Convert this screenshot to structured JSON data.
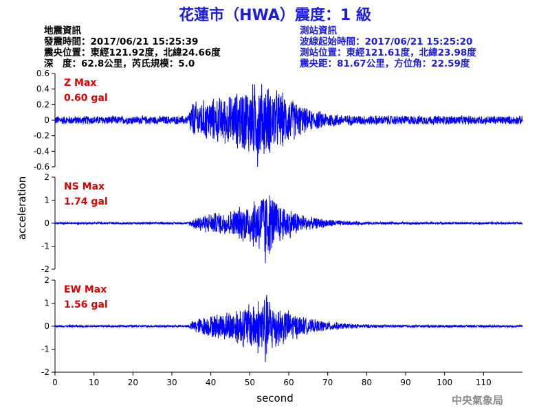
{
  "header": {
    "title": "花蓮市（HWA）震度：1 級"
  },
  "quake_info": {
    "heading": "地震資訊",
    "origin_time": "發震時間：2017/06/21 15:25:39",
    "epicenter": "震央位置：東經121.92度，北緯24.66度",
    "depth_magnitude": "深　度：62.8公里，芮氏規模：5.0"
  },
  "station_info": {
    "heading": "測站資訊",
    "wave_start": "波線起始時間：2017/06/21 15:25:20",
    "station_location": "測站位置：東經121.61度，北緯23.98度",
    "distance_azimuth": "震央距：81.67公里，方位角：22.59度"
  },
  "footer": {
    "credit": "中央氣象局"
  },
  "colors": {
    "trace": "#0000ff",
    "max_label": "#e00000",
    "title": "#1c1ce0",
    "axis": "#000000"
  },
  "chart_data": {
    "type": "line",
    "xlabel": "second",
    "ylabel": "acceleration",
    "xlim": [
      0,
      120
    ],
    "x_ticks": [
      0,
      10,
      20,
      30,
      40,
      50,
      60,
      70,
      80,
      90,
      100,
      110
    ],
    "grid": false,
    "panels": [
      {
        "name": "Z",
        "max_label": "Z Max",
        "max_value": "0.60 gal",
        "peak": 0.6,
        "ylim": [
          -0.6,
          0.6
        ],
        "y_ticks": [
          0.6,
          0.4,
          0.2,
          0,
          -0.2,
          -0.4,
          -0.6
        ],
        "y_tick_labels": [
          "0.6",
          "0.4",
          "0.2",
          "0",
          "-0.2",
          "-0.4",
          "-0.6"
        ],
        "envelope": [
          [
            0,
            0.06
          ],
          [
            34,
            0.06
          ],
          [
            35,
            0.25
          ],
          [
            45,
            0.35
          ],
          [
            52,
            0.55
          ],
          [
            58,
            0.4
          ],
          [
            65,
            0.15
          ],
          [
            75,
            0.07
          ],
          [
            120,
            0.06
          ]
        ]
      },
      {
        "name": "NS",
        "max_label": "NS Max",
        "max_value": "1.74 gal",
        "peak": 1.74,
        "ylim": [
          -2,
          2
        ],
        "y_ticks": [
          2,
          1,
          0,
          -1,
          -2
        ],
        "y_tick_labels": [
          "2",
          "1",
          "0",
          "-1",
          "-2"
        ],
        "envelope": [
          [
            0,
            0.05
          ],
          [
            34,
            0.05
          ],
          [
            37,
            0.4
          ],
          [
            45,
            0.6
          ],
          [
            50,
            1.0
          ],
          [
            54,
            1.7
          ],
          [
            58,
            0.9
          ],
          [
            65,
            0.3
          ],
          [
            75,
            0.1
          ],
          [
            85,
            0.06
          ],
          [
            120,
            0.05
          ]
        ]
      },
      {
        "name": "EW",
        "max_label": "EW Max",
        "max_value": "1.56 gal",
        "peak": 1.56,
        "ylim": [
          -2,
          2
        ],
        "y_ticks": [
          2,
          1,
          0,
          -1,
          -2
        ],
        "y_tick_labels": [
          "2",
          "1",
          "0",
          "-1",
          "-2"
        ],
        "envelope": [
          [
            0,
            0.05
          ],
          [
            34,
            0.05
          ],
          [
            36,
            0.35
          ],
          [
            44,
            0.7
          ],
          [
            50,
            1.1
          ],
          [
            54,
            1.55
          ],
          [
            58,
            0.9
          ],
          [
            65,
            0.35
          ],
          [
            75,
            0.12
          ],
          [
            85,
            0.07
          ],
          [
            120,
            0.05
          ]
        ]
      }
    ]
  }
}
